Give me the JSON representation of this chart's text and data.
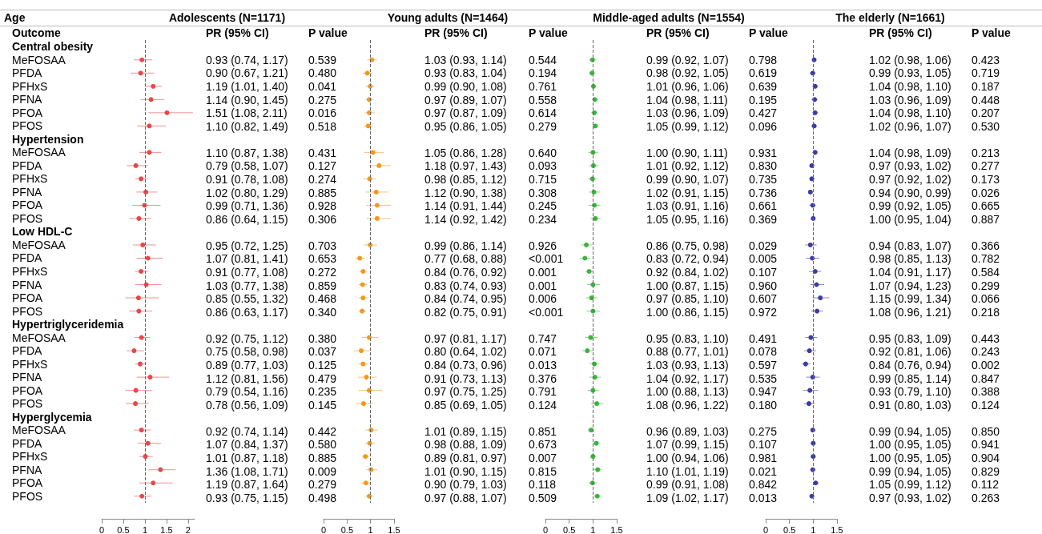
{
  "chart_data": [
    {
      "type": "scatter",
      "orientation": "horizontal",
      "title": "Adolescents (N=1171)",
      "ylabel": "Outcome",
      "color": "#e8474a",
      "ref_lines": [
        {
          "axis": "x",
          "value": 1,
          "color": "#666666",
          "line_style": "dashed"
        }
      ],
      "xlim": [
        0,
        2.15
      ],
      "xticks": [
        0,
        0.5,
        1,
        1.5,
        2
      ],
      "marker": "circle",
      "categories": [
        "Central obesity",
        "MeFOSAA",
        "PFDA",
        "PFHxS",
        "PFNA",
        "PFOA",
        "PFOS",
        "Hypertension",
        "MeFOSAA",
        "PFDA",
        "PFHxS",
        "PFNA",
        "PFOA",
        "PFOS",
        "Low HDL-C",
        "MeFOSAA",
        "PFDA",
        "PFHxS",
        "PFNA",
        "PFOA",
        "PFOS",
        "Hypertriglyceridemia",
        "MeFOSAA",
        "PFDA",
        "PFHxS",
        "PFNA",
        "PFOA",
        "PFOS",
        "Hyperglycemia",
        "MeFOSAA",
        "PFDA",
        "PFHxS",
        "PFNA",
        "PFOA",
        "PFOS"
      ],
      "values": [
        null,
        0.93,
        0.9,
        1.19,
        1.14,
        1.51,
        1.1,
        null,
        1.1,
        0.79,
        0.91,
        1.02,
        0.99,
        0.86,
        null,
        0.95,
        1.07,
        0.91,
        1.03,
        0.85,
        0.86,
        null,
        0.92,
        0.75,
        0.89,
        1.12,
        0.79,
        0.78,
        null,
        0.92,
        1.07,
        1.01,
        1.36,
        1.19,
        0.93
      ],
      "errors": [
        null,
        [
          0.74,
          1.17
        ],
        [
          0.67,
          1.21
        ],
        [
          1.01,
          1.4
        ],
        [
          0.9,
          1.45
        ],
        [
          1.08,
          2.11
        ],
        [
          0.82,
          1.49
        ],
        null,
        [
          0.87,
          1.38
        ],
        [
          0.58,
          1.07
        ],
        [
          0.78,
          1.08
        ],
        [
          0.8,
          1.29
        ],
        [
          0.71,
          1.36
        ],
        [
          0.64,
          1.15
        ],
        null,
        [
          0.72,
          1.25
        ],
        [
          0.81,
          1.41
        ],
        [
          0.77,
          1.08
        ],
        [
          0.77,
          1.38
        ],
        [
          0.55,
          1.32
        ],
        [
          0.63,
          1.17
        ],
        null,
        [
          0.75,
          1.12
        ],
        [
          0.58,
          0.98
        ],
        [
          0.77,
          1.03
        ],
        [
          0.81,
          1.56
        ],
        [
          0.54,
          1.16
        ],
        [
          0.56,
          1.09
        ],
        null,
        [
          0.74,
          1.14
        ],
        [
          0.84,
          1.37
        ],
        [
          0.87,
          1.18
        ],
        [
          1.08,
          1.71
        ],
        [
          0.87,
          1.64
        ],
        [
          0.75,
          1.15
        ]
      ],
      "value_labels": [
        null,
        "0.93 (0.74, 1.17)",
        "0.90 (0.67, 1.21)",
        "1.19 (1.01, 1.40)",
        "1.14 (0.90, 1.45)",
        "1.51 (1.08, 2.11)",
        "1.10 (0.82, 1.49)",
        null,
        "1.10 (0.87, 1.38)",
        "0.79 (0.58, 1.07)",
        "0.91 (0.78, 1.08)",
        "1.02 (0.80, 1.29)",
        "0.99 (0.71, 1.36)",
        "0.86 (0.64, 1.15)",
        null,
        "0.95 (0.72, 1.25)",
        "1.07 (0.81, 1.41)",
        "0.91 (0.77, 1.08)",
        "1.03 (0.77, 1.38)",
        "0.85 (0.55, 1.32)",
        "0.86 (0.63, 1.17)",
        null,
        "0.92 (0.75, 1.12)",
        "0.75 (0.58, 0.98)",
        "0.89 (0.77, 1.03)",
        "1.12 (0.81, 1.56)",
        "0.79 (0.54, 1.16)",
        "0.78 (0.56, 1.09)",
        null,
        "0.92 (0.74, 1.14)",
        "1.07 (0.84, 1.37)",
        "1.01 (0.87, 1.18)",
        "1.36 (1.08, 1.71)",
        "1.19 (0.87, 1.64)",
        "0.93 (0.75, 1.15)"
      ],
      "annotations": [
        "PR (95% CI)",
        "P value",
        "0.539",
        "0.480",
        "0.041",
        "0.275",
        "0.016",
        "0.518",
        "0.431",
        "0.127",
        "0.274",
        "0.885",
        "0.928",
        "0.306",
        "0.703",
        "0.653",
        "0.272",
        "0.859",
        "0.468",
        "0.340",
        "0.380",
        "0.037",
        "0.125",
        "0.479",
        "0.235",
        "0.145",
        "0.442",
        "0.580",
        "0.885",
        "0.009",
        "0.279",
        "0.498",
        "Age"
      ]
    },
    {
      "type": "scatter",
      "orientation": "horizontal",
      "title": "Young adults (N=1464)",
      "color": "#f39a1a",
      "ref_lines": [
        {
          "axis": "x",
          "value": 1,
          "color": "#666666",
          "line_style": "dashed"
        }
      ],
      "xlim": [
        0,
        1.5
      ],
      "xticks": [
        0,
        0.5,
        1,
        1.5
      ],
      "marker": "circle",
      "tick_labels": "x",
      "values": [
        null,
        1.03,
        0.93,
        0.99,
        0.97,
        0.97,
        0.95,
        null,
        1.05,
        1.18,
        0.98,
        1.12,
        1.14,
        1.14,
        null,
        0.99,
        0.77,
        0.84,
        0.83,
        0.84,
        0.82,
        null,
        0.97,
        0.8,
        0.84,
        0.91,
        0.97,
        0.85,
        null,
        1.01,
        0.98,
        0.89,
        1.01,
        0.9,
        0.97
      ],
      "errors": [
        null,
        [
          0.93,
          1.14
        ],
        [
          0.83,
          1.04
        ],
        [
          0.9,
          1.08
        ],
        [
          0.89,
          1.07
        ],
        [
          0.87,
          1.09
        ],
        [
          0.86,
          1.05
        ],
        null,
        [
          0.86,
          1.28
        ],
        [
          0.97,
          1.43
        ],
        [
          0.85,
          1.12
        ],
        [
          0.9,
          1.38
        ],
        [
          0.91,
          1.44
        ],
        [
          0.92,
          1.42
        ],
        null,
        [
          0.86,
          1.14
        ],
        [
          0.68,
          0.88
        ],
        [
          0.76,
          0.92
        ],
        [
          0.74,
          0.93
        ],
        [
          0.74,
          0.95
        ],
        [
          0.75,
          0.91
        ],
        null,
        [
          0.81,
          1.17
        ],
        [
          0.64,
          1.02
        ],
        [
          0.73,
          0.96
        ],
        [
          0.73,
          1.13
        ],
        [
          0.75,
          1.25
        ],
        [
          0.69,
          1.05
        ],
        null,
        [
          0.89,
          1.15
        ],
        [
          0.88,
          1.09
        ],
        [
          0.81,
          0.97
        ],
        [
          0.9,
          1.15
        ],
        [
          0.79,
          1.03
        ],
        [
          0.88,
          1.07
        ]
      ],
      "value_labels": [
        null,
        "1.03 (0.93, 1.14)",
        "0.93 (0.83, 1.04)",
        "0.99 (0.90, 1.08)",
        "0.97 (0.89, 1.07)",
        "0.97 (0.87, 1.09)",
        "0.95 (0.86, 1.05)",
        null,
        "1.05 (0.86, 1.28)",
        "1.18 (0.97, 1.43)",
        "0.98 (0.85, 1.12)",
        "1.12 (0.90, 1.38)",
        "1.14 (0.91, 1.44)",
        "1.14 (0.92, 1.42)",
        null,
        "0.99 (0.86, 1.14)",
        "0.77 (0.68, 0.88)",
        "0.84 (0.76, 0.92)",
        "0.83 (0.74, 0.93)",
        "0.84 (0.74, 0.95)",
        "0.82 (0.75, 0.91)",
        null,
        "0.97 (0.81, 1.17)",
        "0.80 (0.64, 1.02)",
        "0.84 (0.73, 0.96)",
        "0.91 (0.73, 1.13)",
        "0.97 (0.75, 1.25)",
        "0.85 (0.69, 1.05)",
        null,
        "1.01 (0.89, 1.15)",
        "0.98 (0.88, 1.09)",
        "0.89 (0.81, 0.97)",
        "1.01 (0.90, 1.15)",
        "0.90 (0.79, 1.03)",
        "0.97 (0.88, 1.07)"
      ],
      "annotations": [
        "PR (95% CI)",
        "P value",
        "0.544",
        "0.194",
        "0.761",
        "0.558",
        "0.614",
        "0.279",
        "0.640",
        "0.093",
        "0.715",
        "0.308",
        "0.245",
        "0.234",
        "0.926",
        "<0.001",
        "0.001",
        "0.001",
        "0.006",
        "<0.001",
        "0.747",
        "0.071",
        "0.013",
        "0.376",
        "0.791",
        "0.124",
        "0.851",
        "0.673",
        "0.007",
        "0.815",
        "0.118",
        "0.509"
      ]
    },
    {
      "type": "scatter",
      "orientation": "horizontal",
      "title": "Middle-aged adults (N=1554)",
      "color": "#3cb43c",
      "ref_lines": [
        {
          "axis": "x",
          "value": 1,
          "color": "#666666",
          "line_style": "dashed"
        }
      ],
      "xlim": [
        0,
        1.5
      ],
      "xticks": [
        0,
        0.5,
        1,
        1.5
      ],
      "marker": "circle",
      "tick_labels": "x",
      "values": [
        null,
        0.99,
        0.98,
        1.01,
        1.04,
        1.03,
        1.05,
        null,
        1.0,
        1.01,
        0.99,
        1.02,
        1.03,
        1.05,
        null,
        0.86,
        0.83,
        0.92,
        1.0,
        0.97,
        1.0,
        null,
        0.95,
        0.88,
        1.03,
        1.04,
        1.0,
        1.08,
        null,
        0.96,
        1.07,
        1.0,
        1.1,
        0.99,
        1.09
      ],
      "errors": [
        null,
        [
          0.92,
          1.07
        ],
        [
          0.92,
          1.05
        ],
        [
          0.96,
          1.06
        ],
        [
          0.98,
          1.11
        ],
        [
          0.96,
          1.09
        ],
        [
          0.99,
          1.12
        ],
        null,
        [
          0.9,
          1.11
        ],
        [
          0.92,
          1.12
        ],
        [
          0.9,
          1.07
        ],
        [
          0.91,
          1.15
        ],
        [
          0.91,
          1.16
        ],
        [
          0.95,
          1.16
        ],
        null,
        [
          0.75,
          0.98
        ],
        [
          0.72,
          0.94
        ],
        [
          0.84,
          1.02
        ],
        [
          0.87,
          1.15
        ],
        [
          0.85,
          1.1
        ],
        [
          0.86,
          1.15
        ],
        null,
        [
          0.83,
          1.1
        ],
        [
          0.77,
          1.01
        ],
        [
          0.93,
          1.13
        ],
        [
          0.92,
          1.17
        ],
        [
          0.88,
          1.13
        ],
        [
          0.96,
          1.22
        ],
        null,
        [
          0.89,
          1.03
        ],
        [
          0.99,
          1.15
        ],
        [
          0.94,
          1.06
        ],
        [
          1.01,
          1.19
        ],
        [
          0.91,
          1.08
        ],
        [
          1.02,
          1.17
        ]
      ],
      "value_labels": [
        null,
        "0.99 (0.92, 1.07)",
        "0.98 (0.92, 1.05)",
        "1.01 (0.96, 1.06)",
        "1.04 (0.98, 1.11)",
        "1.03 (0.96, 1.09)",
        "1.05 (0.99, 1.12)",
        null,
        "1.00 (0.90, 1.11)",
        "1.01 (0.92, 1.12)",
        "0.99 (0.90, 1.07)",
        "1.02 (0.91, 1.15)",
        "1.03 (0.91, 1.16)",
        "1.05 (0.95, 1.16)",
        null,
        "0.86 (0.75, 0.98)",
        "0.83 (0.72, 0.94)",
        "0.92 (0.84, 1.02)",
        "1.00 (0.87, 1.15)",
        "0.97 (0.85, 1.10)",
        "1.00 (0.86, 1.15)",
        null,
        "0.95 (0.83, 1.10)",
        "0.88 (0.77, 1.01)",
        "1.03 (0.93, 1.13)",
        "1.04 (0.92, 1.17)",
        "1.00 (0.88, 1.13)",
        "1.08 (0.96, 1.22)",
        null,
        "0.96 (0.89, 1.03)",
        "1.07 (0.99, 1.15)",
        "1.00 (0.94, 1.06)",
        "1.10 (1.01, 1.19)",
        "0.99 (0.91, 1.08)",
        "1.09 (1.02, 1.17)"
      ],
      "annotations": [
        "PR (95% CI)",
        "P value",
        "0.798",
        "0.619",
        "0.639",
        "0.195",
        "0.427",
        "0.096",
        "0.931",
        "0.830",
        "0.735",
        "0.736",
        "0.661",
        "0.369",
        "0.029",
        "0.005",
        "0.107",
        "0.960",
        "0.607",
        "0.972",
        "0.491",
        "0.078",
        "0.597",
        "0.535",
        "0.947",
        "0.180",
        "0.275",
        "0.107",
        "0.981",
        "0.021",
        "0.842",
        "0.013"
      ]
    },
    {
      "type": "scatter",
      "orientation": "horizontal",
      "title": "The elderly (N=1661)",
      "color": "#3b3ba0",
      "ref_lines": [
        {
          "axis": "x",
          "value": 1,
          "color": "#666666",
          "line_style": "dashed"
        }
      ],
      "xlim": [
        0,
        1.5
      ],
      "xticks": [
        0,
        0.5,
        1,
        1.5
      ],
      "marker": "circle",
      "tick_labels": "x",
      "values": [
        null,
        1.02,
        0.99,
        1.04,
        1.03,
        1.04,
        1.02,
        null,
        1.04,
        0.97,
        0.97,
        0.94,
        0.99,
        1.0,
        null,
        0.94,
        0.98,
        1.04,
        1.07,
        1.15,
        1.08,
        null,
        0.95,
        0.92,
        0.84,
        0.99,
        0.93,
        0.91,
        null,
        0.99,
        1.0,
        1.0,
        0.99,
        1.05,
        0.97
      ],
      "errors": [
        null,
        [
          0.98,
          1.06
        ],
        [
          0.93,
          1.05
        ],
        [
          0.98,
          1.1
        ],
        [
          0.96,
          1.09
        ],
        [
          0.98,
          1.1
        ],
        [
          0.96,
          1.07
        ],
        null,
        [
          0.98,
          1.09
        ],
        [
          0.93,
          1.02
        ],
        [
          0.92,
          1.02
        ],
        [
          0.9,
          0.99
        ],
        [
          0.92,
          1.05
        ],
        [
          0.95,
          1.04
        ],
        null,
        [
          0.83,
          1.07
        ],
        [
          0.85,
          1.13
        ],
        [
          0.91,
          1.17
        ],
        [
          0.94,
          1.23
        ],
        [
          0.99,
          1.34
        ],
        [
          0.96,
          1.21
        ],
        null,
        [
          0.83,
          1.09
        ],
        [
          0.81,
          1.06
        ],
        [
          0.76,
          0.94
        ],
        [
          0.85,
          1.14
        ],
        [
          0.79,
          1.1
        ],
        [
          0.8,
          1.03
        ],
        null,
        [
          0.94,
          1.05
        ],
        [
          0.95,
          1.05
        ],
        [
          0.95,
          1.05
        ],
        [
          0.94,
          1.05
        ],
        [
          0.99,
          1.12
        ],
        [
          0.93,
          1.02
        ]
      ],
      "value_labels": [
        null,
        "1.02 (0.98, 1.06)",
        "0.99 (0.93, 1.05)",
        "1.04 (0.98, 1.10)",
        "1.03 (0.96, 1.09)",
        "1.04 (0.98, 1.10)",
        "1.02 (0.96, 1.07)",
        null,
        "1.04 (0.98, 1.09)",
        "0.97 (0.93, 1.02)",
        "0.97 (0.92, 1.02)",
        "0.94 (0.90, 0.99)",
        "0.99 (0.92, 1.05)",
        "1.00 (0.95, 1.04)",
        null,
        "0.94 (0.83, 1.07)",
        "0.98 (0.85, 1.13)",
        "1.04 (0.91, 1.17)",
        "1.07 (0.94, 1.23)",
        "1.15 (0.99, 1.34)",
        "1.08 (0.96, 1.21)",
        null,
        "0.95 (0.83, 1.09)",
        "0.92 (0.81, 1.06)",
        "0.84 (0.76, 0.94)",
        "0.99 (0.85, 1.14)",
        "0.93 (0.79, 1.10)",
        "0.91 (0.80, 1.03)",
        null,
        "0.99 (0.94, 1.05)",
        "1.00 (0.95, 1.05)",
        "1.00 (0.95, 1.05)",
        "0.99 (0.94, 1.05)",
        "1.05 (0.99, 1.12)",
        "0.97 (0.93, 1.02)"
      ],
      "annotations": [
        "PR (95% CI)",
        "P value",
        "0.423",
        "0.719",
        "0.187",
        "0.448",
        "0.207",
        "0.530",
        "0.213",
        "0.277",
        "0.173",
        "0.026",
        "0.665",
        "0.887",
        "0.366",
        "0.782",
        "0.584",
        "0.299",
        "0.066",
        "0.218",
        "0.443",
        "0.243",
        "0.002",
        "0.847",
        "0.388",
        "0.124",
        "0.850",
        "0.941",
        "0.904",
        "0.829",
        "0.112",
        "0.263"
      ]
    }
  ]
}
